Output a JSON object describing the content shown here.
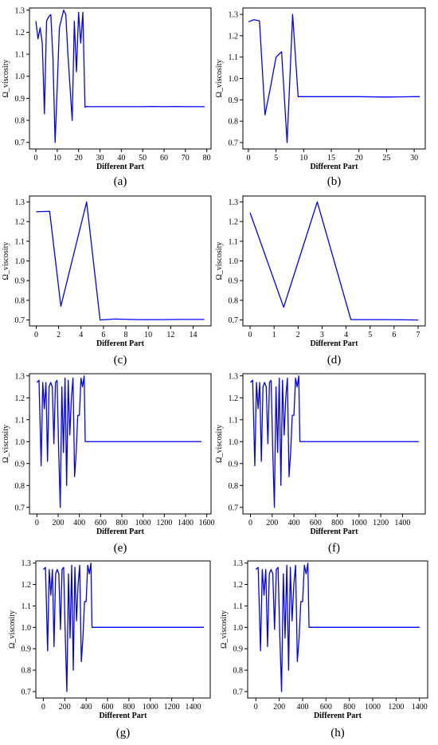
{
  "colors": {
    "line": "#0000ff",
    "axis": "#000000"
  },
  "chart_data": [
    {
      "type": "line",
      "caption": "(a)",
      "xlabel": "Different Part",
      "ylabel": "Ω_viscosity",
      "xlim": [
        -3,
        82
      ],
      "ylim": [
        0.67,
        1.31
      ],
      "xticks": [
        0,
        10,
        20,
        30,
        40,
        50,
        60,
        70,
        80
      ],
      "yticks": [
        0.7,
        0.8,
        0.9,
        1.0,
        1.1,
        1.2,
        1.3
      ],
      "series": [
        {
          "x": [
            0,
            1,
            2,
            3,
            4,
            5,
            6,
            7,
            8,
            9,
            10,
            11,
            12,
            13,
            14,
            15,
            16,
            17,
            18,
            19,
            20,
            21,
            22,
            23,
            24,
            25,
            30,
            40,
            50,
            55,
            60,
            65,
            70,
            75,
            79
          ],
          "y": [
            1.25,
            1.17,
            1.22,
            1.15,
            0.83,
            1.25,
            1.27,
            1.28,
            1.08,
            0.7,
            0.95,
            1.22,
            1.26,
            1.3,
            1.28,
            1.1,
            0.95,
            0.8,
            1.25,
            1.02,
            1.29,
            1.15,
            1.29,
            0.86,
            0.863,
            0.862,
            0.862,
            0.862,
            0.862,
            0.863,
            0.862,
            0.863,
            0.862,
            0.862,
            0.862
          ]
        }
      ]
    },
    {
      "type": "line",
      "caption": "(b)",
      "xlabel": "Different Part",
      "ylabel": "Ω_viscosity",
      "xlim": [
        -1,
        32
      ],
      "ylim": [
        0.67,
        1.33
      ],
      "xticks": [
        0,
        5,
        10,
        15,
        20,
        25,
        30
      ],
      "yticks": [
        0.7,
        0.8,
        0.9,
        1.0,
        1.1,
        1.2,
        1.3
      ],
      "series": [
        {
          "x": [
            0,
            1,
            2,
            3,
            4,
            5,
            6,
            7,
            8,
            9,
            10,
            15,
            20,
            25,
            30,
            31
          ],
          "y": [
            1.265,
            1.275,
            1.27,
            0.83,
            0.96,
            1.1,
            1.125,
            0.7,
            1.3,
            0.915,
            0.915,
            0.915,
            0.915,
            0.913,
            0.915,
            0.915
          ]
        }
      ]
    },
    {
      "type": "line",
      "caption": "(c)",
      "xlabel": "Different Part",
      "ylabel": "Ω_viscosity",
      "xlim": [
        -0.6,
        15.6
      ],
      "ylim": [
        0.67,
        1.33
      ],
      "xticks": [
        0,
        2,
        4,
        6,
        8,
        10,
        12,
        14
      ],
      "yticks": [
        0.7,
        0.8,
        0.9,
        1.0,
        1.1,
        1.2,
        1.3
      ],
      "series": [
        {
          "x": [
            0,
            1.2,
            2.2,
            4.5,
            5.7,
            7,
            9,
            11,
            13,
            15
          ],
          "y": [
            1.25,
            1.252,
            0.77,
            1.3,
            0.7,
            0.705,
            0.702,
            0.702,
            0.703,
            0.703
          ]
        }
      ]
    },
    {
      "type": "line",
      "caption": "(d)",
      "xlabel": "Different Part",
      "ylabel": "Ω_viscosity",
      "xlim": [
        -0.3,
        7.3
      ],
      "ylim": [
        0.67,
        1.33
      ],
      "xticks": [
        0,
        1,
        2,
        3,
        4,
        5,
        6,
        7
      ],
      "yticks": [
        0.7,
        0.8,
        0.9,
        1.0,
        1.1,
        1.2,
        1.3
      ],
      "series": [
        {
          "x": [
            0,
            1.4,
            2.8,
            4.2,
            5.6,
            7
          ],
          "y": [
            1.245,
            0.765,
            1.3,
            0.702,
            0.702,
            0.7
          ]
        }
      ]
    },
    {
      "type": "line",
      "caption": "(e)",
      "xlabel": "Different Part",
      "ylabel": "Ω_viscosity",
      "xlim": [
        -70,
        1640
      ],
      "ylim": [
        0.67,
        1.31
      ],
      "xticks": [
        0,
        200,
        400,
        600,
        800,
        1000,
        1200,
        1400,
        1600
      ],
      "yticks": [
        0.7,
        0.8,
        0.9,
        1.0,
        1.1,
        1.2,
        1.3
      ],
      "series": [
        {
          "x": [
            0,
            20,
            40,
            55,
            70,
            85,
            100,
            115,
            130,
            145,
            160,
            175,
            190,
            205,
            220,
            235,
            250,
            265,
            280,
            295,
            310,
            325,
            340,
            355,
            370,
            385,
            400,
            415,
            430,
            445,
            455,
            470,
            600,
            800,
            1000,
            1200,
            1400,
            1550
          ],
          "y": [
            1.27,
            1.28,
            0.89,
            1.27,
            1.15,
            1.27,
            0.91,
            1.25,
            1.27,
            1.25,
            0.99,
            1.27,
            1.28,
            0.96,
            0.7,
            1.25,
            0.95,
            1.29,
            0.8,
            1.28,
            1.03,
            1.2,
            1.29,
            0.84,
            0.95,
            1.12,
            1.12,
            1.29,
            1.25,
            1.3,
            1.0,
            1.0,
            1.0,
            1.0,
            1.0,
            1.0,
            1.0,
            1.0
          ]
        }
      ]
    },
    {
      "type": "line",
      "caption": "(f)",
      "xlabel": "Different Part",
      "ylabel": "Ω_viscosity",
      "xlim": [
        -70,
        1610
      ],
      "ylim": [
        0.67,
        1.31
      ],
      "xticks": [
        0,
        200,
        400,
        600,
        800,
        1000,
        1200,
        1400
      ],
      "yticks": [
        0.7,
        0.8,
        0.9,
        1.0,
        1.1,
        1.2,
        1.3
      ],
      "series": [
        {
          "x": [
            0,
            20,
            40,
            55,
            70,
            85,
            100,
            115,
            130,
            145,
            160,
            175,
            190,
            205,
            220,
            235,
            250,
            265,
            280,
            295,
            310,
            325,
            340,
            355,
            370,
            385,
            400,
            415,
            430,
            445,
            455,
            470,
            600,
            800,
            1000,
            1200,
            1400,
            1550
          ],
          "y": [
            1.27,
            1.28,
            0.89,
            1.27,
            1.15,
            1.27,
            0.91,
            1.25,
            1.27,
            1.25,
            0.99,
            1.27,
            1.28,
            0.96,
            0.7,
            1.25,
            0.95,
            1.29,
            0.8,
            1.28,
            1.03,
            1.2,
            1.29,
            0.84,
            0.95,
            1.12,
            1.12,
            1.29,
            1.25,
            1.3,
            1.0,
            1.0,
            1.0,
            1.0,
            1.0,
            1.0,
            1.0,
            1.0
          ]
        }
      ]
    },
    {
      "type": "line",
      "caption": "(g)",
      "xlabel": "Different Part",
      "ylabel": "Ω_viscosity",
      "xlim": [
        -70,
        1560
      ],
      "ylim": [
        0.67,
        1.31
      ],
      "xticks": [
        0,
        200,
        400,
        600,
        800,
        1000,
        1200,
        1400
      ],
      "yticks": [
        0.7,
        0.8,
        0.9,
        1.0,
        1.1,
        1.2,
        1.3
      ],
      "series": [
        {
          "x": [
            0,
            20,
            40,
            55,
            70,
            85,
            100,
            115,
            130,
            145,
            160,
            175,
            190,
            205,
            220,
            235,
            250,
            265,
            280,
            295,
            310,
            325,
            340,
            355,
            370,
            385,
            400,
            415,
            430,
            445,
            455,
            470,
            600,
            800,
            1000,
            1200,
            1400,
            1500
          ],
          "y": [
            1.27,
            1.28,
            0.89,
            1.27,
            1.15,
            1.27,
            0.91,
            1.25,
            1.27,
            1.25,
            0.99,
            1.27,
            1.28,
            0.96,
            0.7,
            1.25,
            0.95,
            1.29,
            0.8,
            1.28,
            1.03,
            1.2,
            1.29,
            0.84,
            0.95,
            1.12,
            1.12,
            1.29,
            1.25,
            1.3,
            1.0,
            1.0,
            1.0,
            1.0,
            1.0,
            1.0,
            1.0,
            1.0
          ]
        }
      ]
    },
    {
      "type": "line",
      "caption": "(h)",
      "xlabel": "Different Part",
      "ylabel": "Ω_viscosity",
      "xlim": [
        -70,
        1470
      ],
      "ylim": [
        0.67,
        1.31
      ],
      "xticks": [
        0,
        200,
        400,
        600,
        800,
        1000,
        1200,
        1400
      ],
      "yticks": [
        0.7,
        0.8,
        0.9,
        1.0,
        1.1,
        1.2,
        1.3
      ],
      "series": [
        {
          "x": [
            0,
            20,
            40,
            55,
            70,
            85,
            100,
            115,
            130,
            145,
            160,
            175,
            190,
            205,
            220,
            235,
            250,
            265,
            280,
            295,
            310,
            325,
            340,
            355,
            370,
            385,
            400,
            415,
            430,
            445,
            455,
            470,
            600,
            800,
            1000,
            1200,
            1400
          ],
          "y": [
            1.27,
            1.28,
            0.89,
            1.27,
            1.15,
            1.27,
            0.91,
            1.25,
            1.27,
            1.25,
            0.99,
            1.27,
            1.28,
            0.96,
            0.7,
            1.25,
            0.95,
            1.29,
            0.8,
            1.28,
            1.03,
            1.2,
            1.29,
            0.84,
            0.95,
            1.12,
            1.12,
            1.29,
            1.25,
            1.3,
            1.0,
            1.0,
            1.0,
            1.0,
            1.0,
            1.0,
            1.0
          ]
        }
      ]
    }
  ]
}
